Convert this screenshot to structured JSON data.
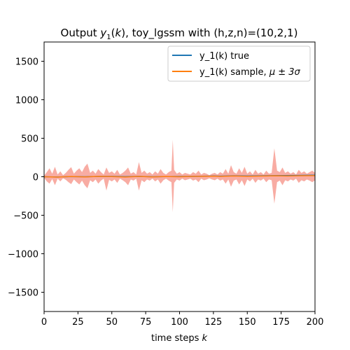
{
  "chart_data": {
    "type": "line",
    "title": "Output y_1(k), toy_lgssm with (h,z,n)=(10,2,1)",
    "title_parts": {
      "prefix": "Output ",
      "var": "y",
      "sub": "1",
      "arg_open": "(",
      "arg": "k",
      "suffix": "), toy_lgssm with (h,z,n)=(10,2,1)"
    },
    "xlabel": "time steps k",
    "xlabel_parts": {
      "text": "time steps ",
      "var": "k"
    },
    "ylabel": "",
    "xlim": [
      0,
      200
    ],
    "ylim": [
      -1750,
      1750
    ],
    "xticks": [
      0,
      25,
      50,
      75,
      100,
      125,
      150,
      175,
      200
    ],
    "xtick_labels": [
      "0",
      "25",
      "50",
      "75",
      "100",
      "125",
      "150",
      "175",
      "200"
    ],
    "yticks": [
      -1500,
      -1000,
      -500,
      0,
      500,
      1000,
      1500
    ],
    "ytick_labels": [
      "−1500",
      "−1000",
      "−500",
      "0",
      "500",
      "1000",
      "1500"
    ],
    "grid": false,
    "legend_position": "top-right",
    "series": [
      {
        "name": "y_1(k) true",
        "color": "#1f77b4",
        "x": [
          0,
          10,
          20,
          30,
          40,
          50,
          60,
          70,
          80,
          90,
          100,
          110,
          120,
          125,
          130,
          140,
          150,
          160,
          170,
          180,
          190,
          200
        ],
        "values": [
          0,
          -3,
          2,
          0,
          3,
          4,
          1,
          5,
          0,
          2,
          3,
          5,
          8,
          10,
          8,
          12,
          10,
          13,
          15,
          16,
          18,
          20
        ]
      },
      {
        "name": "y_1(k) sample, μ ± 3σ",
        "name_parts": {
          "text": "y_1(k) sample, ",
          "math": "μ ± 3σ"
        },
        "color": "#ff7f0e",
        "band_color": "#f8aca3",
        "x": [
          0,
          10,
          20,
          30,
          40,
          50,
          60,
          70,
          80,
          90,
          100,
          110,
          120,
          125,
          130,
          140,
          150,
          160,
          170,
          180,
          190,
          200
        ],
        "values": [
          0,
          -5,
          3,
          -2,
          4,
          2,
          -3,
          5,
          -2,
          3,
          0,
          4,
          6,
          8,
          5,
          10,
          6,
          9,
          12,
          10,
          14,
          15
        ],
        "band": {
          "x": [
            0,
            2,
            4,
            6,
            8,
            10,
            12,
            14,
            16,
            18,
            20,
            22,
            24,
            26,
            28,
            30,
            32,
            34,
            36,
            38,
            40,
            42,
            44,
            46,
            48,
            50,
            52,
            54,
            56,
            58,
            60,
            62,
            64,
            66,
            68,
            70,
            72,
            74,
            76,
            78,
            80,
            82,
            84,
            86,
            88,
            90,
            92,
            94,
            95,
            96,
            98,
            100,
            102,
            104,
            106,
            108,
            110,
            112,
            114,
            116,
            118,
            120,
            122,
            124,
            126,
            128,
            130,
            132,
            134,
            136,
            138,
            140,
            142,
            144,
            146,
            148,
            150,
            152,
            154,
            156,
            158,
            160,
            162,
            164,
            166,
            168,
            170,
            172,
            174,
            176,
            178,
            180,
            182,
            184,
            186,
            188,
            190,
            192,
            194,
            196,
            198,
            200
          ],
          "upper": [
            15,
            60,
            110,
            40,
            130,
            30,
            70,
            20,
            50,
            90,
            125,
            40,
            80,
            110,
            60,
            130,
            170,
            50,
            80,
            40,
            100,
            60,
            30,
            120,
            50,
            70,
            40,
            90,
            30,
            50,
            80,
            120,
            40,
            60,
            30,
            190,
            50,
            80,
            40,
            60,
            30,
            70,
            40,
            100,
            50,
            30,
            60,
            80,
            480,
            90,
            40,
            60,
            30,
            50,
            40,
            30,
            60,
            40,
            80,
            30,
            50,
            40,
            20,
            40,
            50,
            30,
            60,
            40,
            100,
            40,
            150,
            60,
            40,
            110,
            50,
            130,
            40,
            70,
            30,
            90,
            40,
            60,
            30,
            80,
            40,
            50,
            370,
            80,
            60,
            120,
            50,
            70,
            40,
            60,
            30,
            90,
            50,
            70,
            40,
            60,
            80,
            50
          ],
          "lower": [
            -15,
            -60,
            -90,
            -30,
            -110,
            -25,
            -60,
            -20,
            -40,
            -70,
            -95,
            -35,
            -70,
            -100,
            -50,
            -110,
            -150,
            -45,
            -70,
            -35,
            -90,
            -50,
            -25,
            -180,
            -40,
            -60,
            -35,
            -80,
            -25,
            -45,
            -70,
            -110,
            -35,
            -50,
            -25,
            -180,
            -45,
            -70,
            -35,
            -50,
            -25,
            -60,
            -35,
            -90,
            -45,
            -25,
            -50,
            -70,
            -460,
            -80,
            -35,
            -50,
            -25,
            -45,
            -35,
            -25,
            -50,
            -35,
            -70,
            -25,
            -45,
            -35,
            -20,
            -35,
            -45,
            -25,
            -50,
            -35,
            -90,
            -35,
            -130,
            -50,
            -35,
            -100,
            -45,
            -120,
            -35,
            -60,
            -25,
            -80,
            -35,
            -50,
            -25,
            -70,
            -35,
            -45,
            -350,
            -70,
            -50,
            -110,
            -45,
            -60,
            -35,
            -50,
            -25,
            -80,
            -45,
            -60,
            -35,
            -50,
            -70,
            -45
          ]
        }
      }
    ]
  }
}
